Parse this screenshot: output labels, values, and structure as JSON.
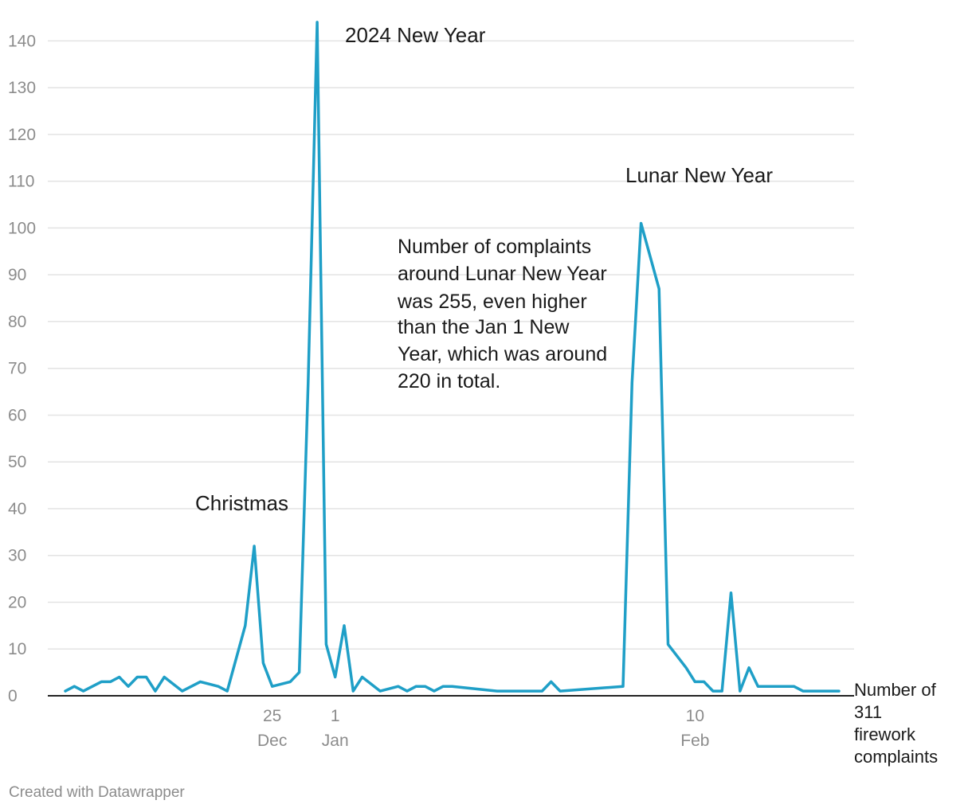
{
  "chart_data": {
    "type": "line",
    "ylabel": "Number of 311 firework complaints",
    "ylabel_lines": [
      "Number of",
      "311",
      "firework",
      "complaints"
    ],
    "ylim": [
      0,
      145
    ],
    "yticks": [
      0,
      10,
      20,
      30,
      40,
      50,
      60,
      70,
      80,
      90,
      100,
      110,
      120,
      130,
      140
    ],
    "grid": true,
    "xlim": [
      "2023-12-02",
      "2024-02-26"
    ],
    "xticks": [
      {
        "date": "2023-12-25",
        "day": "25",
        "month": "Dec"
      },
      {
        "date": "2024-01-01",
        "day": "1",
        "month": "Jan"
      },
      {
        "date": "2024-02-10",
        "day": "10",
        "month": "Feb"
      }
    ],
    "line_color": "#1f9fc7",
    "series": [
      {
        "x": [
          "2023-12-02",
          "2023-12-03",
          "2023-12-04",
          "2023-12-06",
          "2023-12-07",
          "2023-12-08",
          "2023-12-09",
          "2023-12-10",
          "2023-12-11",
          "2023-12-12",
          "2023-12-13",
          "2023-12-15",
          "2023-12-17",
          "2023-12-19",
          "2023-12-20",
          "2023-12-22",
          "2023-12-23",
          "2023-12-24",
          "2023-12-25",
          "2023-12-27",
          "2023-12-28",
          "2023-12-29",
          "2023-12-30",
          "2023-12-31",
          "2024-01-01",
          "2024-01-02",
          "2024-01-03",
          "2024-01-04",
          "2024-01-06",
          "2024-01-08",
          "2024-01-09",
          "2024-01-10",
          "2024-01-11",
          "2024-01-12",
          "2024-01-13",
          "2024-01-14",
          "2024-01-19",
          "2024-01-21",
          "2024-01-22",
          "2024-01-24",
          "2024-01-25",
          "2024-01-26",
          "2024-02-02",
          "2024-02-03",
          "2024-02-04",
          "2024-02-06",
          "2024-02-07",
          "2024-02-09",
          "2024-02-10",
          "2024-02-11",
          "2024-02-12",
          "2024-02-13",
          "2024-02-14",
          "2024-02-15",
          "2024-02-16",
          "2024-02-17",
          "2024-02-21",
          "2024-02-22",
          "2024-02-24",
          "2024-02-26"
        ],
        "y": [
          1,
          2,
          1,
          3,
          3,
          4,
          2,
          4,
          4,
          1,
          4,
          1,
          3,
          2,
          1,
          15,
          32,
          7,
          2,
          3,
          5,
          67,
          144,
          11,
          4,
          15,
          1,
          4,
          1,
          2,
          1,
          2,
          2,
          1,
          2,
          2,
          1,
          1,
          1,
          1,
          3,
          1,
          2,
          67,
          101,
          87,
          11,
          6,
          3,
          3,
          1,
          1,
          22,
          1,
          6,
          2,
          2,
          1,
          1,
          1
        ]
      }
    ],
    "annotations": [
      {
        "text": "2024 New Year"
      },
      {
        "text": "Christmas"
      },
      {
        "text": "Lunar New Year"
      },
      {
        "text": "Number of complaints around Lunar New Year was 255, even higher than the Jan 1 New Year, which was around 220 in total.",
        "lines": [
          "Number of complaints",
          "around Lunar New Year",
          "was 255, even higher",
          "than the Jan 1 New",
          "Year, which was around",
          "220 in total."
        ]
      }
    ]
  },
  "footer": "Created with Datawrapper"
}
